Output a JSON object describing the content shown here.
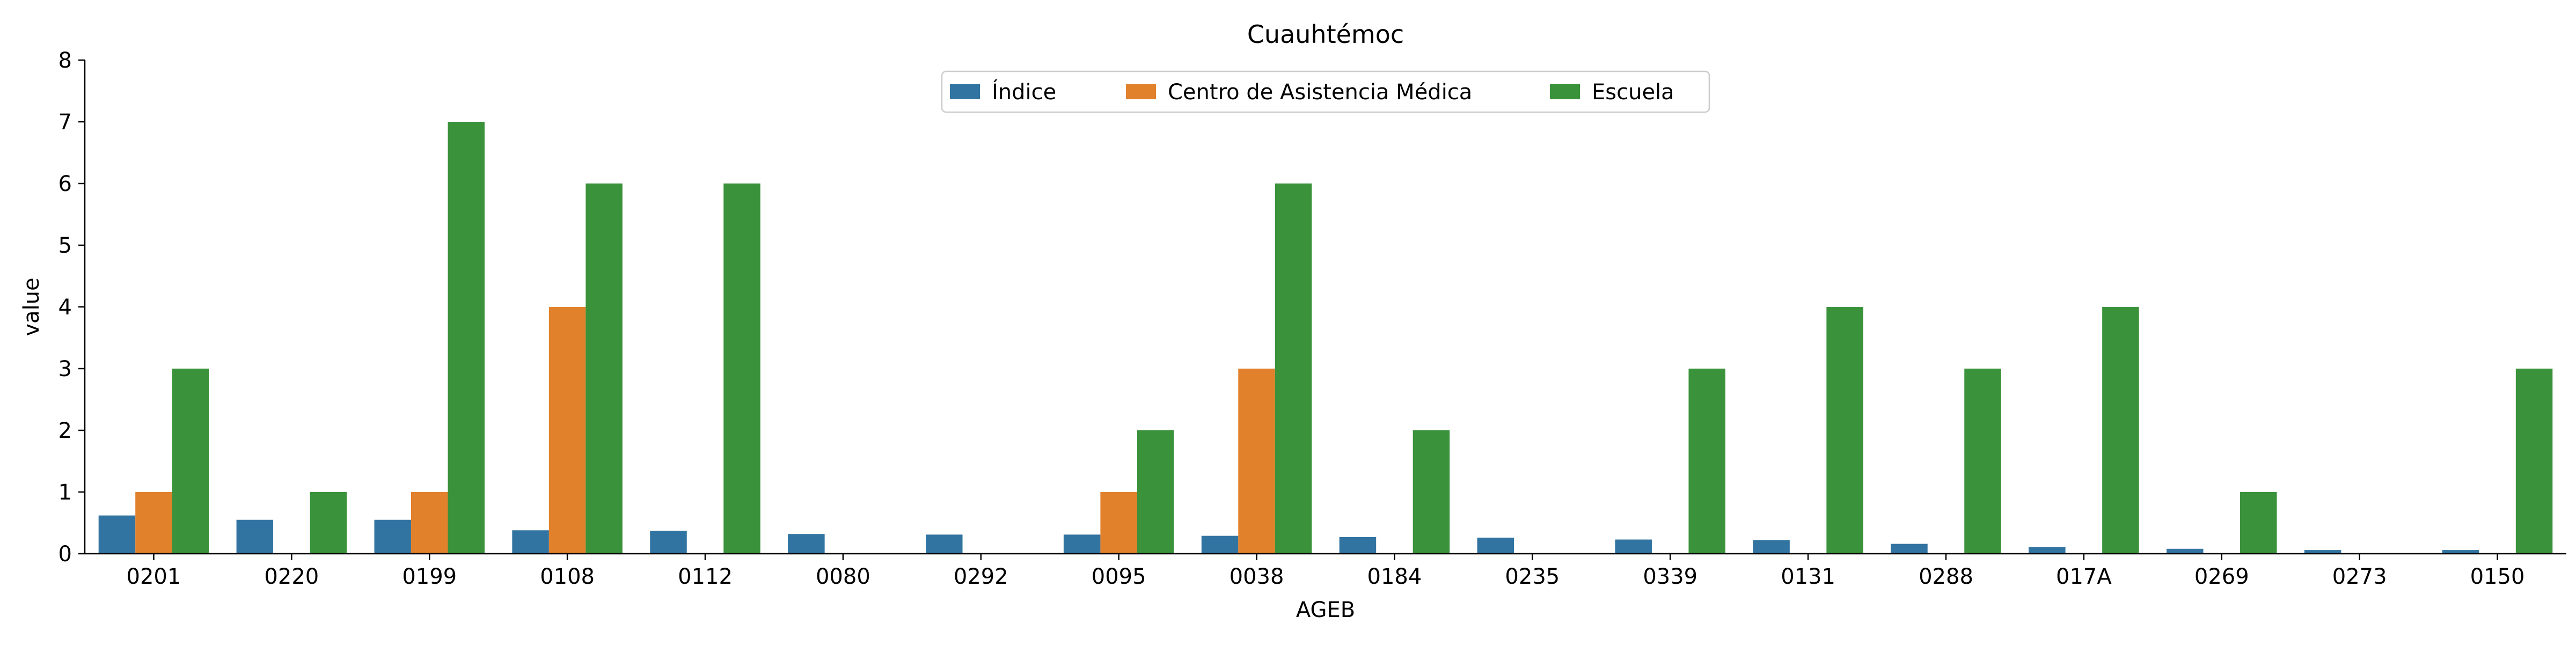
{
  "chart_data": {
    "type": "bar",
    "title": "Cuauhtémoc",
    "xlabel": "AGEB",
    "ylabel": "value",
    "ylim": [
      0,
      8
    ],
    "yticks": [
      0,
      1,
      2,
      3,
      4,
      5,
      6,
      7,
      8
    ],
    "grid": false,
    "legend_position": "top-center",
    "categories": [
      "0201",
      "0220",
      "0199",
      "0108",
      "0112",
      "0080",
      "0292",
      "0095",
      "0038",
      "0184",
      "0235",
      "0339",
      "0131",
      "0288",
      "017A",
      "0269",
      "0273",
      "0150"
    ],
    "series": [
      {
        "name": "Índice",
        "color": "#3274a1",
        "values": [
          0.62,
          0.55,
          0.55,
          0.38,
          0.37,
          0.32,
          0.31,
          0.31,
          0.29,
          0.27,
          0.26,
          0.23,
          0.22,
          0.16,
          0.11,
          0.08,
          0.06,
          0.06
        ]
      },
      {
        "name": "Centro de Asistencia Médica",
        "color": "#e1812c",
        "values": [
          1,
          0,
          1,
          4,
          0,
          0,
          0,
          1,
          3,
          0,
          0,
          0,
          0,
          0,
          0,
          0,
          0,
          0
        ]
      },
      {
        "name": "Escuela",
        "color": "#3a923a",
        "values": [
          3,
          1,
          7,
          6,
          6,
          0,
          0,
          2,
          6,
          2,
          0,
          3,
          4,
          3,
          4,
          1,
          0,
          3
        ]
      }
    ]
  }
}
